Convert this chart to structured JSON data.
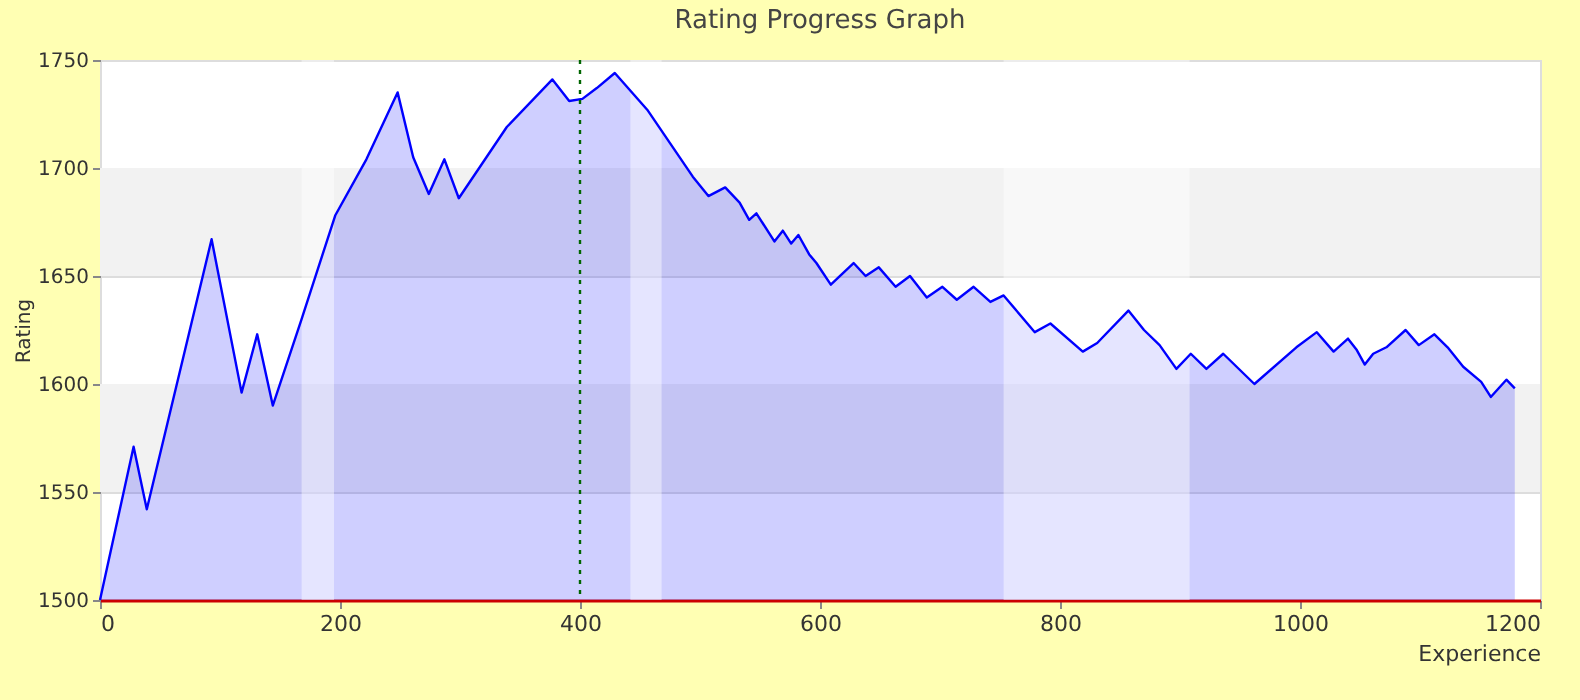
{
  "chart_data": {
    "type": "area",
    "title": "Rating Progress Graph",
    "xlabel": "Experience",
    "ylabel": "Rating",
    "series": [
      {
        "color": "#0000ff",
        "x": [
          0,
          28,
          39,
          93,
          118,
          131,
          144,
          168,
          196,
          222,
          248,
          261,
          274,
          287,
          299,
          339,
          377,
          391,
          402,
          414,
          429,
          456,
          494,
          507,
          521,
          533,
          541,
          547,
          562,
          569,
          576,
          582,
          591,
          597,
          609,
          628,
          638,
          649,
          663,
          675,
          689,
          702,
          714,
          728,
          742,
          753,
          779,
          792,
          819,
          831,
          857,
          870,
          883,
          897,
          909,
          922,
          936,
          962,
          997,
          1014,
          1028,
          1040,
          1047,
          1054,
          1061,
          1072,
          1088,
          1099,
          1112,
          1123,
          1136,
          1151,
          1159,
          1172,
          1179
        ],
        "values": [
          1500,
          1571,
          1542,
          1667,
          1596,
          1623,
          1590,
          1630,
          1678,
          1704,
          1735,
          1705,
          1688,
          1704,
          1686,
          1719,
          1741,
          1731,
          1732,
          1737,
          1744,
          1727,
          1696,
          1687,
          1691,
          1684,
          1676,
          1679,
          1666,
          1671,
          1665,
          1669,
          1660,
          1656,
          1646,
          1656,
          1650,
          1654,
          1645,
          1650,
          1640,
          1645,
          1639,
          1645,
          1638,
          1641,
          1624,
          1628,
          1615,
          1619,
          1634,
          1625,
          1618,
          1607,
          1614,
          1607,
          1614,
          1600,
          1617,
          1624,
          1615,
          1621,
          1616,
          1609,
          1614,
          1617,
          1625,
          1618,
          1623,
          1617,
          1608,
          1601,
          1594,
          1602,
          1598
        ]
      }
    ],
    "xlim": [
      0,
      1200
    ],
    "xticks": [
      0,
      200,
      400,
      600,
      800,
      1000,
      1200
    ],
    "ylim": [
      1500,
      1750
    ],
    "yticks": [
      1500,
      1550,
      1600,
      1650,
      1700,
      1750
    ],
    "grid": "y",
    "bands": [
      {
        "axis": "y",
        "from": 1550,
        "to": 1600,
        "color": "#f2f2f2"
      },
      {
        "axis": "y",
        "from": 1650,
        "to": 1700,
        "color": "#f2f2f2"
      },
      {
        "axis": "x",
        "from": 168,
        "to": 195,
        "color": "#ffffff"
      },
      {
        "axis": "x",
        "from": 442,
        "to": 468,
        "color": "#ffffff"
      },
      {
        "axis": "x",
        "from": 753,
        "to": 908,
        "color": "#ffffff"
      }
    ],
    "ref_lines": [
      {
        "axis": "x",
        "value": 400,
        "color": "#006600",
        "line_style": "dotted"
      }
    ]
  }
}
